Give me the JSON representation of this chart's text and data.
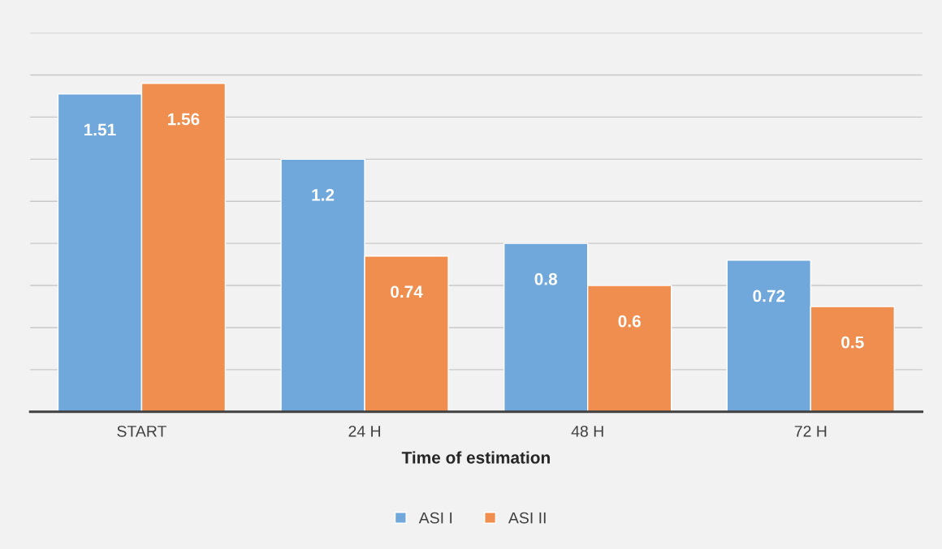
{
  "chart_data": {
    "type": "bar",
    "xlabel": "Time of estimation",
    "categories": [
      "START",
      "24 H",
      "48 H",
      "72 H"
    ],
    "series": [
      {
        "name": "ASI I",
        "color": "#70a8dc",
        "values": [
          1.51,
          1.2,
          0.8,
          0.72
        ]
      },
      {
        "name": "ASI II",
        "color": "#ef8e4e",
        "values": [
          1.56,
          0.74,
          0.6,
          0.5
        ]
      }
    ],
    "data_labels": true,
    "ylim": [
      0,
      1.8
    ],
    "yticks": [
      {
        "value": 0,
        "label": null
      },
      {
        "value": 0.2,
        "label": null
      },
      {
        "value": 0.4,
        "label": null
      },
      {
        "value": 0.6,
        "label": null
      },
      {
        "value": 0.8,
        "label": null
      },
      {
        "value": 1.0,
        "label": null
      },
      {
        "value": 1.2,
        "label": null
      },
      {
        "value": 1.4,
        "label": null
      },
      {
        "value": 1.6,
        "label": null
      },
      {
        "value": 1.8,
        "label": null
      }
    ],
    "tick_labels": "x",
    "grid": "y",
    "legend": "bottom"
  }
}
